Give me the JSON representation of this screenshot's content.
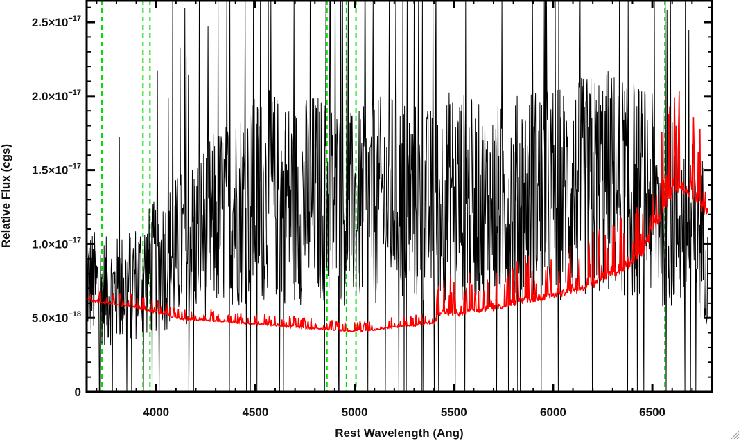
{
  "chart_data": {
    "type": "line",
    "title": "",
    "xlabel": "Rest Wavelength (Ang)",
    "ylabel": "Relative Flux (cgs)",
    "xlim": [
      3650,
      6800
    ],
    "ylim": [
      0,
      2.65e-17
    ],
    "x_ticks": [
      {
        "value": 4000,
        "label": "4000"
      },
      {
        "value": 4500,
        "label": "4500"
      },
      {
        "value": 5000,
        "label": "5000"
      },
      {
        "value": 5500,
        "label": "5500"
      },
      {
        "value": 6000,
        "label": "6000"
      },
      {
        "value": 6500,
        "label": "6500"
      }
    ],
    "y_ticks": [
      {
        "value": 0,
        "mantissa": "0",
        "exponent": ""
      },
      {
        "value": 5e-18,
        "mantissa": "5.0×10",
        "exponent": "−18"
      },
      {
        "value": 1e-17,
        "mantissa": "1.0×10",
        "exponent": "−17"
      },
      {
        "value": 1.5e-17,
        "mantissa": "1.5×10",
        "exponent": "−17"
      },
      {
        "value": 2e-17,
        "mantissa": "2.0×10",
        "exponent": "−17"
      },
      {
        "value": 2.5e-17,
        "mantissa": "2.5×10",
        "exponent": "−17"
      }
    ],
    "reference_lines": {
      "color": "#00dd00",
      "style": "dashed",
      "x": [
        3727,
        3934,
        3969,
        4861,
        4959,
        5007,
        6563
      ]
    },
    "series": [
      {
        "role": "observed spectrum (noisy)",
        "color": "#000000",
        "x": [
          3650,
          3700,
          3750,
          3800,
          3850,
          3900,
          3950,
          4000,
          4050,
          4100,
          4150,
          4200,
          4250,
          4300,
          4350,
          4400,
          4450,
          4500,
          4550,
          4600,
          4650,
          4700,
          4750,
          4800,
          4850,
          4900,
          4950,
          5000,
          5050,
          5100,
          5150,
          5200,
          5250,
          5300,
          5350,
          5400,
          5450,
          5500,
          5550,
          5600,
          5650,
          5700,
          5750,
          5800,
          5850,
          5900,
          5950,
          6000,
          6050,
          6100,
          6150,
          6200,
          6250,
          6300,
          6350,
          6400,
          6450,
          6500,
          6550,
          6600,
          6650,
          6700,
          6750,
          6780
        ],
        "y": [
          7.5e-18,
          7e-18,
          6.8e-18,
          6.8e-18,
          7.2e-18,
          7.5e-18,
          8e-18,
          8.5e-18,
          9e-18,
          9.5e-18,
          1e-17,
          1.05e-17,
          1.1e-17,
          1.15e-17,
          1.2e-17,
          1.25e-17,
          1.28e-17,
          1.3e-17,
          1.32e-17,
          1.32e-17,
          1.3e-17,
          1.28e-17,
          1.3e-17,
          1.32e-17,
          1.3e-17,
          1.28e-17,
          1.25e-17,
          1.22e-17,
          1.25e-17,
          1.28e-17,
          1.3e-17,
          1.32e-17,
          1.3e-17,
          1.28e-17,
          1.25e-17,
          1.25e-17,
          1.3e-17,
          1.35e-17,
          1.32e-17,
          1.28e-17,
          1.25e-17,
          1.25e-17,
          1.28e-17,
          1.3e-17,
          1.32e-17,
          1.35e-17,
          1.35e-17,
          1.35e-17,
          1.35e-17,
          1.35e-17,
          1.38e-17,
          1.4e-17,
          1.42e-17,
          1.42e-17,
          1.4e-17,
          1.38e-17,
          1.35e-17,
          1.3e-17,
          1.25e-17,
          1.2e-17,
          1.15e-17,
          1.1e-17,
          1.05e-17,
          1e-17
        ]
      },
      {
        "role": "model spectrum",
        "color": "#ff0000",
        "x": [
          3650,
          3700,
          3750,
          3800,
          3850,
          3900,
          3950,
          4000,
          4050,
          4100,
          4150,
          4200,
          4300,
          4400,
          4500,
          4600,
          4700,
          4800,
          4900,
          5000,
          5100,
          5200,
          5300,
          5400,
          5450,
          5500,
          5600,
          5700,
          5800,
          5900,
          6000,
          6100,
          6200,
          6250,
          6300,
          6350,
          6400,
          6450,
          6500,
          6550,
          6600,
          6650,
          6700,
          6750,
          6780
        ],
        "y": [
          6.2e-18,
          6.1e-18,
          6e-18,
          5.9e-18,
          5.8e-18,
          5.7e-18,
          5.5e-18,
          5.4e-18,
          5.2e-18,
          5e-18,
          4.9e-18,
          4.9e-18,
          4.8e-18,
          4.7e-18,
          4.6e-18,
          4.5e-18,
          4.4e-18,
          4.3e-18,
          4.2e-18,
          4.1e-18,
          4.2e-18,
          4.4e-18,
          4.5e-18,
          4.7e-18,
          5.5e-18,
          5.3e-18,
          5.5e-18,
          5.7e-18,
          6e-18,
          6.3e-18,
          6.5e-18,
          6.8e-18,
          7.2e-18,
          7.8e-18,
          8e-18,
          8.3e-18,
          8.8e-18,
          9.5e-18,
          1.1e-17,
          1.2e-17,
          1.35e-17,
          1.4e-17,
          1.35e-17,
          1.25e-17,
          1.2e-17
        ]
      }
    ]
  }
}
